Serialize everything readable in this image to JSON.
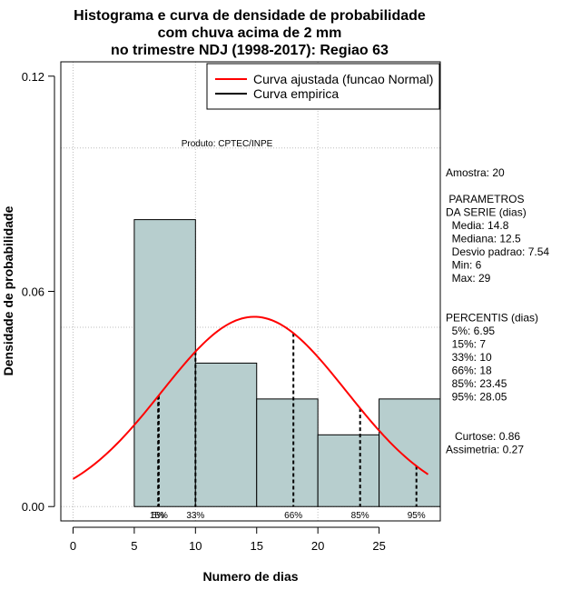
{
  "chart_data": {
    "type": "bar",
    "title_lines": [
      "Histograma e curva de densidade de probabilidade",
      "com chuva acima de 2 mm",
      "no trimestre NDJ (1998-2017): Regiao 63"
    ],
    "xlabel": "Numero de dias",
    "ylabel": "Densidade de probabilidade",
    "xlim": [
      -1,
      30
    ],
    "ylim": [
      -0.004,
      0.124
    ],
    "x_ticks": [
      0,
      5,
      10,
      15,
      20,
      25
    ],
    "x_tick_labels": [
      "0",
      "5",
      "10",
      "15",
      "20",
      "25"
    ],
    "y_ticks": [
      0.0,
      0.06,
      0.12
    ],
    "y_tick_labels": [
      "0.00",
      "0.06",
      "0.12"
    ],
    "grid": true,
    "grid_x": [
      0,
      10,
      20
    ],
    "grid_y": [
      0,
      0.05,
      0.1
    ],
    "bins": [
      {
        "x0": 5,
        "x1": 10,
        "density": 0.08
      },
      {
        "x0": 10,
        "x1": 15,
        "density": 0.04
      },
      {
        "x0": 15,
        "x1": 20,
        "density": 0.03
      },
      {
        "x0": 20,
        "x1": 25,
        "density": 0.02
      },
      {
        "x0": 25,
        "x1": 30,
        "density": 0.03
      }
    ],
    "bar_color": "#b7cece",
    "normal_curve": {
      "name": "Curva ajustada (funcao Normal)",
      "mean": 14.8,
      "sd": 7.54,
      "x_from": 0,
      "x_to": 29,
      "color": "#ff0000"
    },
    "empirical_name": "Curva empirica",
    "empirical_color": "#000000",
    "percentiles": [
      {
        "label": "5%",
        "x": 6.95
      },
      {
        "label": "15%",
        "x": 7
      },
      {
        "label": "33%",
        "x": 10
      },
      {
        "label": "66%",
        "x": 18
      },
      {
        "label": "85%",
        "x": 23.45
      },
      {
        "label": "95%",
        "x": 28.05
      }
    ],
    "legend_position": "top-right",
    "annotation": "Produto: CPTEC/INPE",
    "side_panel": [
      "Amostra: 20",
      "",
      " PARAMETROS",
      "DA SERIE (dias)",
      "  Media: 14.8",
      "  Mediana: 12.5",
      "  Desvio padrao: 7.54",
      "  Min: 6",
      "  Max: 29",
      "",
      "",
      "PERCENTIS (dias)",
      "  5%: 6.95",
      "  15%: 7",
      "  33%: 10",
      "  66%: 18",
      "  85%: 23.45",
      "  95%: 28.05",
      "",
      "",
      "   Curtose: 0.86",
      "Assimetria: 0.27"
    ]
  }
}
